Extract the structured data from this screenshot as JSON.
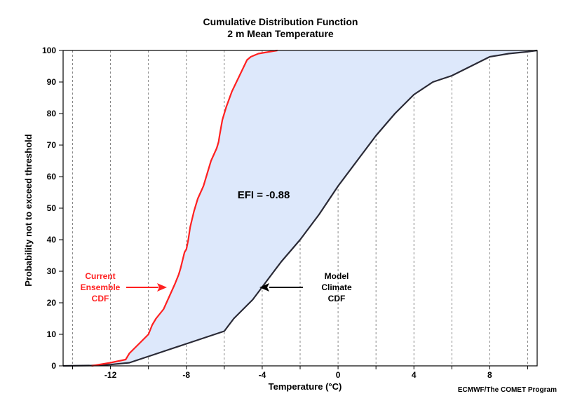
{
  "chart_data": {
    "type": "line",
    "title": "Cumulative Distribution Function",
    "subtitle": "2 m Mean Temperature",
    "xlabel": "Temperature (°C)",
    "ylabel": "Probability not to exceed threshold",
    "xlim": [
      -14.5,
      10.5
    ],
    "ylim": [
      0,
      100
    ],
    "x_ticks": [
      -12,
      -8,
      -4,
      0,
      4,
      8
    ],
    "y_ticks": [
      0,
      10,
      20,
      30,
      40,
      50,
      60,
      70,
      80,
      90,
      100
    ],
    "grid": "vertical dashed",
    "series": [
      {
        "name": "Current Ensemble CDF",
        "color": "#ff2020",
        "x": [
          -13.0,
          -12.0,
          -11.2,
          -11.0,
          -10.5,
          -10.0,
          -9.8,
          -9.6,
          -9.2,
          -8.9,
          -8.6,
          -8.4,
          -8.3,
          -8.1,
          -8.0,
          -7.9,
          -7.8,
          -7.6,
          -7.4,
          -7.1,
          -6.9,
          -6.7,
          -6.4,
          -6.3,
          -6.25,
          -6.1,
          -5.9,
          -5.6,
          -5.2,
          -4.8,
          -4.6,
          -4.2,
          -3.2
        ],
        "y": [
          0,
          1,
          2,
          4,
          7,
          10,
          13,
          15,
          18,
          22,
          26,
          29,
          31,
          36,
          37,
          40,
          44,
          49,
          53,
          57,
          61,
          65,
          69,
          71,
          73,
          78,
          82,
          87,
          92,
          97,
          98,
          99,
          100
        ]
      },
      {
        "name": "Model Climate CDF",
        "color": "#2a2a36",
        "x": [
          -14.5,
          -13.0,
          -12.0,
          -11.0,
          -10.0,
          -9.0,
          -8.0,
          -7.0,
          -6.0,
          -5.5,
          -5.0,
          -4.5,
          -4.0,
          -3.5,
          -3.0,
          -2.0,
          -1.0,
          0.0,
          1.0,
          2.0,
          3.0,
          4.0,
          5.0,
          5.5,
          6.0,
          7.0,
          8.0,
          8.5,
          9.0,
          10.0,
          10.5
        ],
        "y": [
          0,
          0.1,
          0.4,
          1,
          3,
          5,
          7,
          9,
          11,
          15,
          18,
          21,
          25,
          29,
          33,
          40,
          48,
          57,
          65,
          73,
          80,
          86,
          90,
          91,
          92,
          95,
          98,
          98.5,
          99,
          99.6,
          100
        ]
      }
    ],
    "shaded_region": {
      "between": [
        "Current Ensemble CDF",
        "Model Climate CDF"
      ],
      "color": "#dde8fb"
    },
    "annotations": {
      "efi_text": "EFI = -0.88",
      "ensemble_label": [
        "Current",
        "Ensemble",
        "CDF"
      ],
      "climate_label": [
        "Model",
        "Climate",
        "CDF"
      ],
      "credit": "ECMWF/The COMET Program"
    }
  }
}
